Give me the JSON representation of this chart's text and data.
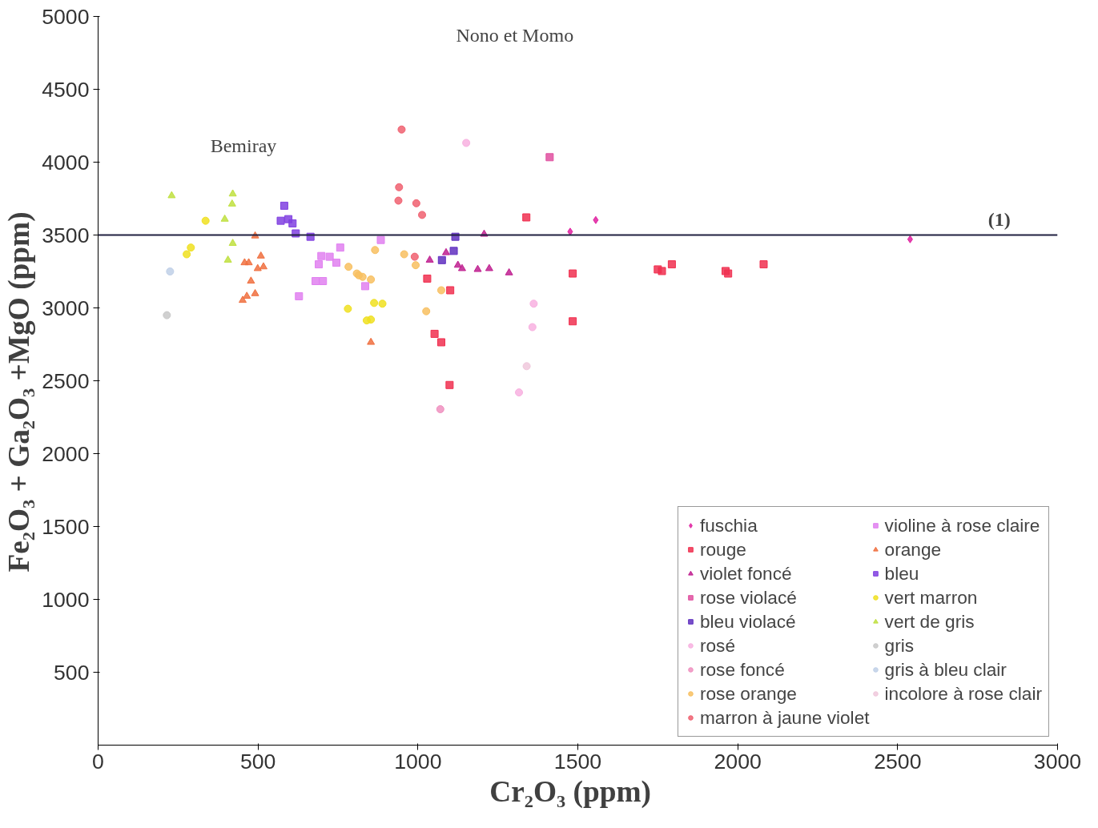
{
  "chart_data": {
    "type": "scatter",
    "xlabel": "Cr₂O₃   (ppm)",
    "ylabel": "Fe₂O₃ + Ga₂O₃ +MgO    (ppm)",
    "xlim": [
      0,
      3000
    ],
    "xticks": [
      0,
      500,
      1000,
      1500,
      2000,
      2500,
      3000
    ],
    "ylim": [
      0,
      5000
    ],
    "yticks": [
      500,
      1000,
      1500,
      2000,
      2500,
      3000,
      3500,
      4000,
      4500,
      5000
    ],
    "grid": false,
    "legend": "bottom right",
    "ref_lines": [
      {
        "axis": "y",
        "value": 3500,
        "color": "#202040"
      }
    ],
    "annotations": [
      "Nono et Momo",
      "Bemiray",
      "(1)"
    ],
    "series": [
      {
        "name": "fuschia",
        "color": "#e020a0",
        "marker": "diamond",
        "x": [
          1556,
          1476,
          2539
        ],
        "values": [
          3603,
          3523,
          3471
        ]
      },
      {
        "name": "rouge",
        "color": "#f03050",
        "marker": "square",
        "x": [
          1029,
          1101,
          1052,
          1073,
          1099,
          1484,
          1484,
          1339,
          1750,
          1763,
          1794,
          1962,
          1970,
          2081
        ],
        "values": [
          3201,
          3121,
          2822,
          2764,
          2471,
          3236,
          2908,
          3621,
          3264,
          3253,
          3299,
          3253,
          3236,
          3299
        ]
      },
      {
        "name": "violet foncé",
        "color": "#c02090",
        "marker": "triangle",
        "x": [
          1207,
          1037,
          1088,
          1125,
          1138,
          1187,
          1223,
          1285
        ],
        "values": [
          3506,
          3328,
          3379,
          3293,
          3270,
          3264,
          3270,
          3241
        ]
      },
      {
        "name": "rose violacé",
        "color": "#e050a0",
        "marker": "square",
        "x": [
          1412
        ],
        "values": [
          4034
        ]
      },
      {
        "name": "bleu violacé",
        "color": "#6030c0",
        "marker": "square",
        "x": [
          1117,
          1112,
          1075
        ],
        "values": [
          3488,
          3391,
          3328
        ]
      },
      {
        "name": "rosé",
        "color": "#f8b0e0",
        "marker": "circle",
        "x": [
          1316,
          1358,
          1362,
          1151
        ],
        "values": [
          2420,
          2868,
          3029,
          4132
        ]
      },
      {
        "name": "rose foncé",
        "color": "#f090c0",
        "marker": "circle",
        "x": [
          1070
        ],
        "values": [
          2305
        ]
      },
      {
        "name": "rose orange",
        "color": "#f8c060",
        "marker": "circle",
        "x": [
          809,
          827,
          853,
          783,
          866,
          815,
          957,
          993,
          1026,
          1073
        ],
        "values": [
          3236,
          3213,
          3195,
          3282,
          3397,
          3224,
          3368,
          3293,
          2977,
          3121
        ]
      },
      {
        "name": "marron à jaune violet",
        "color": "#f06070",
        "marker": "circle",
        "x": [
          949,
          941,
          939,
          995,
          1013,
          990
        ],
        "values": [
          4224,
          3828,
          3736,
          3718,
          3638,
          3351
        ]
      },
      {
        "name": "violine à rose claire",
        "color": "#e080f0",
        "marker": "square",
        "x": [
          757,
          698,
          724,
          745,
          690,
          680,
          703,
          628,
          835,
          884
        ],
        "values": [
          3414,
          3356,
          3351,
          3310,
          3299,
          3184,
          3184,
          3080,
          3149,
          3466
        ]
      },
      {
        "name": "orange",
        "color": "#f07040",
        "marker": "triangle",
        "x": [
          491,
          509,
          471,
          458,
          517,
          499,
          478,
          491,
          465,
          452,
          853
        ],
        "values": [
          3494,
          3356,
          3310,
          3310,
          3282,
          3270,
          3184,
          3098,
          3080,
          3052,
          2764
        ]
      },
      {
        "name": "bleu",
        "color": "#8040e0",
        "marker": "square",
        "x": [
          582,
          571,
          595,
          608,
          618,
          664
        ],
        "values": [
          3701,
          3598,
          3609,
          3580,
          3511,
          3488
        ]
      },
      {
        "name": "vert marron",
        "color": "#f0e020",
        "marker": "circle",
        "x": [
          781,
          853,
          863,
          889,
          840,
          336,
          290,
          277
        ],
        "values": [
          2994,
          2920,
          3034,
          3029,
          2914,
          3598,
          3414,
          3368
        ]
      },
      {
        "name": "vert de gris",
        "color": "#c0e040",
        "marker": "triangle",
        "x": [
          421,
          419,
          396,
          421,
          406,
          230
        ],
        "values": [
          3782,
          3713,
          3609,
          3443,
          3328,
          3770
        ]
      },
      {
        "name": "gris",
        "color": "#c8c8c8",
        "marker": "circle",
        "x": [
          215
        ],
        "values": [
          2950
        ]
      },
      {
        "name": "gris à bleu clair",
        "color": "#c0d0e8",
        "marker": "circle",
        "x": [
          225
        ],
        "values": [
          3250
        ]
      },
      {
        "name": "incolore à rose clair",
        "color": "#f0c8dc",
        "marker": "circle",
        "x": [
          1340
        ],
        "values": [
          2600
        ]
      }
    ]
  }
}
